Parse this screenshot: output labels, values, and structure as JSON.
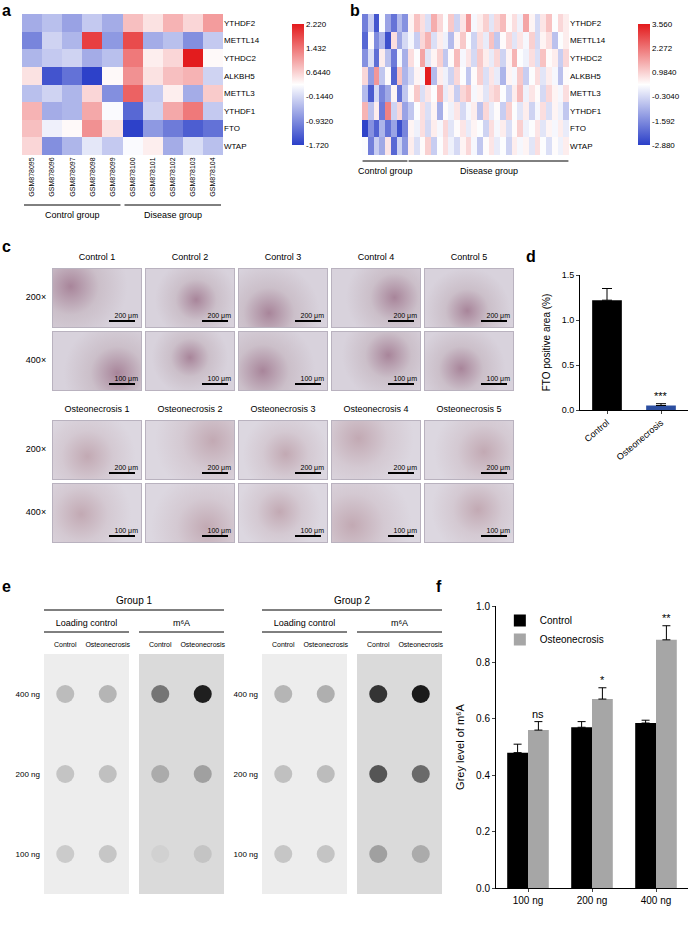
{
  "panel_labels": [
    "a",
    "b",
    "c",
    "d",
    "e",
    "f"
  ],
  "chart_data": [
    {
      "type": "heatmap",
      "categories": [
        "GSM878095",
        "GSM878096",
        "GSM878097",
        "GSM878098",
        "GSM878099",
        "GSM878100",
        "GSM878101",
        "GSM878102",
        "GSM878103",
        "GSM878104"
      ],
      "rows": [
        "YTHDF2",
        "METTL14",
        "YTHDC2",
        "ALKBH5",
        "METTL3",
        "YTHDF1",
        "FTO",
        "WTAP"
      ],
      "values": [
        [
          -0.6,
          -0.4,
          -0.7,
          -0.3,
          -0.6,
          0.8,
          0.5,
          0.9,
          0.6,
          1.1
        ],
        [
          -1.0,
          -0.2,
          -0.5,
          1.9,
          -0.8,
          1.8,
          -0.6,
          -0.4,
          -0.9,
          -0.3
        ],
        [
          -0.5,
          -0.3,
          -0.2,
          -0.6,
          -0.4,
          1.4,
          0.4,
          0.6,
          2.2,
          0.3
        ],
        [
          0.5,
          -1.5,
          -1.2,
          -1.7,
          0.3,
          1.2,
          0.5,
          0.8,
          0.9,
          -0.2
        ],
        [
          -0.4,
          -0.2,
          -0.5,
          0.6,
          -0.9,
          1.6,
          -0.3,
          0.4,
          -0.6,
          0.7
        ],
        [
          0.9,
          -0.6,
          -0.5,
          1.0,
          0.2,
          -1.3,
          -0.2,
          1.0,
          1.4,
          -0.3
        ],
        [
          0.8,
          0.1,
          0.3,
          1.2,
          0.5,
          -1.7,
          -0.8,
          -1.1,
          -1.4,
          -1.2
        ],
        [
          0.6,
          -0.9,
          -0.5,
          0.0,
          -0.3,
          0.2,
          0.4,
          -0.6,
          -0.1,
          -0.4
        ]
      ],
      "groups": [
        {
          "name": "Control group",
          "count": 5
        },
        {
          "name": "Disease group",
          "count": 5
        }
      ],
      "colorbar": {
        "range": [
          -1.72,
          2.22
        ],
        "ticks": [
          {
            "value": 2.22,
            "label": "2.220"
          },
          {
            "value": 1.432,
            "label": "1.432"
          },
          {
            "value": 0.644,
            "label": "0.6440"
          },
          {
            "value": -0.144,
            "label": "-0.1440"
          },
          {
            "value": -0.932,
            "label": "-0.9320"
          },
          {
            "value": -1.72,
            "label": "-1.720"
          }
        ]
      }
    },
    {
      "type": "heatmap",
      "categories": [
        null,
        null,
        null,
        null,
        null,
        null,
        null,
        null,
        null,
        null,
        null,
        null,
        null,
        null,
        null,
        null,
        null,
        null,
        null,
        null,
        null,
        null,
        null,
        null,
        null,
        null,
        null,
        null,
        null,
        null,
        null,
        null,
        null,
        null,
        null,
        null
      ],
      "rows": [
        "YTHDF2",
        "METTL14",
        "YTHDC2",
        "ALKBH5",
        "METTL3",
        "YTHDF1",
        "FTO",
        "WTAP"
      ],
      "values": [
        [
          -1.8,
          -0.5,
          -2.5,
          0.3,
          -1.2,
          -2.0,
          -0.8,
          -1.5,
          0.5,
          1.2,
          0.8,
          -0.2,
          1.5,
          0.9,
          0.3,
          1.1,
          -0.4,
          0.7,
          1.8,
          0.2,
          0.6,
          1.0,
          -0.1,
          0.9,
          1.3,
          0.4,
          0.8,
          0.1,
          1.6,
          0.5,
          -0.3,
          0.7,
          1.2,
          0.3,
          0.9,
          0.6
        ],
        [
          -2.2,
          0.4,
          -1.6,
          -0.9,
          -2.6,
          0.8,
          -1.1,
          -0.3,
          0.2,
          -0.5,
          0.9,
          1.4,
          -0.2,
          0.6,
          0.1,
          -0.8,
          0.5,
          1.1,
          0.3,
          -0.4,
          0.8,
          0.0,
          1.2,
          -0.6,
          0.4,
          0.9,
          -0.1,
          0.7,
          0.2,
          1.0,
          -0.3,
          0.5,
          0.8,
          -0.7,
          0.3,
          0.6
        ],
        [
          -1.5,
          -0.2,
          -2.1,
          0.6,
          -0.7,
          -1.9,
          0.2,
          -1.0,
          0.8,
          0.3,
          1.6,
          -0.1,
          0.5,
          1.0,
          -0.6,
          0.4,
          1.3,
          0.2,
          0.7,
          -0.3,
          1.1,
          0.6,
          0.0,
          0.9,
          -0.4,
          0.5,
          1.4,
          0.3,
          0.1,
          0.8,
          -0.2,
          1.2,
          0.4,
          0.6,
          -0.5,
          0.9
        ],
        [
          0.9,
          -1.3,
          1.8,
          -0.6,
          0.4,
          -2.3,
          1.2,
          -0.9,
          -0.3,
          0.5,
          0.2,
          3.5,
          -0.8,
          0.6,
          0.1,
          -0.4,
          0.9,
          0.3,
          -0.6,
          0.4,
          1.0,
          -0.2,
          0.7,
          0.0,
          -0.9,
          0.5,
          0.2,
          1.1,
          -0.5,
          0.3,
          0.8,
          -0.1,
          0.6,
          0.2,
          -0.7,
          0.4
        ],
        [
          -0.8,
          -2.4,
          -0.3,
          -1.7,
          -1.1,
          0.5,
          -2.0,
          -0.6,
          0.4,
          1.1,
          -0.2,
          0.7,
          0.3,
          1.5,
          0.0,
          0.6,
          -0.5,
          0.9,
          1.2,
          0.2,
          0.5,
          -0.1,
          0.8,
          1.0,
          0.3,
          -0.4,
          0.6,
          1.3,
          0.1,
          0.7,
          0.4,
          -0.3,
          0.9,
          0.5,
          0.2,
          0.8
        ],
        [
          1.4,
          -0.7,
          0.6,
          -1.9,
          2.1,
          -0.4,
          0.9,
          -1.2,
          -0.6,
          0.3,
          0.8,
          -0.2,
          0.5,
          -1.0,
          0.4,
          0.1,
          0.7,
          -0.3,
          0.2,
          0.6,
          -0.7,
          0.9,
          0.0,
          0.4,
          -0.5,
          1.0,
          0.3,
          -0.1,
          0.6,
          -0.4,
          0.2,
          0.8,
          -0.2,
          0.5,
          0.1,
          -0.6
        ],
        [
          -2.8,
          -1.5,
          -2.3,
          -0.9,
          -2.0,
          -1.2,
          -2.6,
          -1.7,
          0.5,
          0.1,
          0.8,
          -0.3,
          0.6,
          0.2,
          0.9,
          -0.1,
          0.4,
          0.7,
          0.0,
          0.5,
          0.3,
          -0.4,
          0.8,
          0.2,
          0.6,
          -0.2,
          0.4,
          1.0,
          0.1,
          0.3,
          0.7,
          -0.1,
          0.5,
          0.2,
          0.6,
          0.0
        ],
        [
          0.3,
          -1.8,
          -0.5,
          -1.1,
          0.7,
          -2.2,
          -0.4,
          -1.4,
          0.6,
          -0.2,
          0.4,
          1.0,
          -0.5,
          0.3,
          0.8,
          0.1,
          -0.3,
          0.5,
          0.9,
          0.2,
          -0.6,
          0.4,
          0.7,
          0.0,
          0.3,
          -0.4,
          0.6,
          0.2,
          0.5,
          -0.1,
          0.8,
          0.3,
          -0.2,
          0.4,
          0.1,
          0.6
        ]
      ],
      "groups": [
        {
          "name": "Control group",
          "count": 8
        },
        {
          "name": "Disease group",
          "count": 28
        }
      ],
      "colorbar": {
        "range": [
          -2.88,
          3.56
        ],
        "ticks": [
          {
            "value": 3.56,
            "label": "3.560"
          },
          {
            "value": 2.272,
            "label": "2.272"
          },
          {
            "value": 0.984,
            "label": "0.9840"
          },
          {
            "value": -0.304,
            "label": "-0.3040"
          },
          {
            "value": -1.592,
            "label": "-1.592"
          },
          {
            "value": -2.88,
            "label": "-2.880"
          }
        ]
      },
      "tick_labels": "y"
    },
    {
      "type": "bar",
      "categories": [
        "Control",
        "Osteonecrosis"
      ],
      "values": [
        1.22,
        0.05
      ],
      "errors": [
        0.13,
        0.02
      ],
      "colors": [
        "#000000",
        "#2c4ea0"
      ],
      "ylabel": "FTO positive area (%)",
      "ylim": [
        0,
        1.5
      ],
      "yticks": [
        {
          "value": 0,
          "label": "0.0"
        },
        0.5,
        {
          "value": 1,
          "label": "1.0"
        },
        1.5
      ],
      "annotations": [
        {
          "category": "Osteonecrosis",
          "text": "***"
        }
      ]
    },
    {
      "type": "bar",
      "categories": [
        "100 ng",
        "200 ng",
        "400 ng"
      ],
      "series": [
        {
          "name": "Control",
          "color": "#000000",
          "values": [
            0.48,
            0.57,
            0.585
          ],
          "errors": [
            0.03,
            0.02,
            0.01
          ]
        },
        {
          "name": "Osteonecrosis",
          "color": "#a6a6a6",
          "values": [
            0.56,
            0.67,
            0.88
          ],
          "errors": [
            0.03,
            0.04,
            0.05
          ]
        }
      ],
      "ylabel": "Grey level of m⁶A",
      "ylim": [
        0,
        1.0
      ],
      "yticks": [
        {
          "value": 0,
          "label": "0.0"
        },
        0.2,
        0.4,
        0.6,
        0.8,
        {
          "value": 1,
          "label": "1.0"
        }
      ],
      "legend": "top-left",
      "annotations": [
        {
          "category": "100 ng",
          "series": "Osteonecrosis",
          "text": "ns"
        },
        {
          "category": "200 ng",
          "series": "Osteonecrosis",
          "text": "*"
        },
        {
          "category": "400 ng",
          "series": "Osteonecrosis",
          "text": "**"
        }
      ]
    }
  ],
  "micrographs": {
    "groups": [
      {
        "samples": [
          "Control 1",
          "Control 2",
          "Control 3",
          "Control 4",
          "Control 5"
        ]
      },
      {
        "samples": [
          "Osteonecrosis 1",
          "Osteonecrosis 2",
          "Osteonecrosis 3",
          "Osteonecrosis 4",
          "Osteonecrosis 5"
        ]
      }
    ],
    "magnifications": [
      "200×",
      "400×"
    ],
    "scale_bars": [
      "200 μm",
      "100 μm"
    ]
  },
  "dot_blot": {
    "rows": [
      "400 ng",
      "200 ng",
      "100 ng"
    ],
    "groups": [
      {
        "title": "Group 1",
        "panels": [
          {
            "title": "Loading control",
            "columns": [
              "Control",
              "Osteonecrosis"
            ],
            "intensity": [
              [
                0.22,
                0.25
              ],
              [
                0.18,
                0.2
              ],
              [
                0.15,
                0.17
              ]
            ]
          },
          {
            "title": "m⁶A",
            "columns": [
              "Control",
              "Osteonecrosis"
            ],
            "intensity": [
              [
                0.55,
                0.95
              ],
              [
                0.3,
                0.35
              ],
              [
                0.12,
                0.18
              ]
            ]
          }
        ]
      },
      {
        "title": "Group 2",
        "panels": [
          {
            "title": "Loading control",
            "columns": [
              "Control",
              "Osteonecrosis"
            ],
            "intensity": [
              [
                0.25,
                0.28
              ],
              [
                0.2,
                0.22
              ],
              [
                0.17,
                0.18
              ]
            ]
          },
          {
            "title": "m⁶A",
            "columns": [
              "Control",
              "Osteonecrosis"
            ],
            "intensity": [
              [
                0.85,
                0.97
              ],
              [
                0.7,
                0.6
              ],
              [
                0.35,
                0.3
              ]
            ]
          }
        ]
      }
    ]
  }
}
